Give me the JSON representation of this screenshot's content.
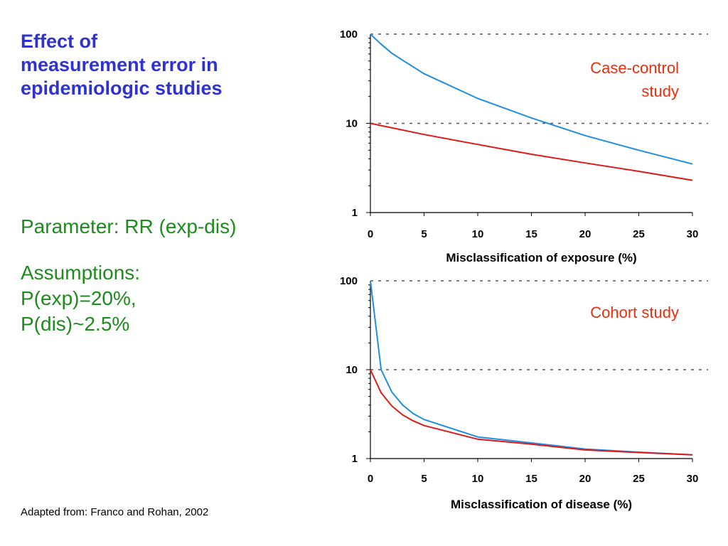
{
  "title_lines": [
    "Effect of",
    "measurement error in",
    "epidemiologic studies"
  ],
  "parameter": "Parameter: RR (exp-dis)",
  "assumptions_lines": [
    "Assumptions:",
    "P(exp)=20%,",
    "P(dis)~2.5%"
  ],
  "source": "Adapted from: Franco and Rohan, 2002",
  "colors": {
    "title": "#2e33cf",
    "text": "#1f8a1f",
    "blue": "#1f8ee0",
    "red": "#e01818",
    "note": "#e8300f"
  },
  "chart_data": [
    {
      "type": "line",
      "xlabel": "Misclassification of exposure (%)",
      "ylabel": "",
      "xlim": [
        0,
        30
      ],
      "ylim": [
        1,
        100
      ],
      "yscale": "log",
      "x_ticks": [
        "0",
        "5",
        "10",
        "15",
        "20",
        "25",
        "30"
      ],
      "y_ticks": [
        "1",
        "10",
        "100"
      ],
      "gridlines_y": [
        10,
        100
      ],
      "annotation_lines": [
        "Case-control",
        "study"
      ],
      "series": [
        {
          "color": "blue",
          "x": [
            0,
            1,
            2,
            3,
            5,
            10,
            15,
            20,
            25,
            30
          ],
          "y": [
            100,
            77,
            61,
            51,
            36,
            19,
            11.5,
            7.3,
            5,
            3.5
          ]
        },
        {
          "color": "red",
          "x": [
            0,
            5,
            10,
            15,
            20,
            25,
            30
          ],
          "y": [
            10,
            7.5,
            5.8,
            4.5,
            3.6,
            2.9,
            2.3
          ]
        }
      ]
    },
    {
      "type": "line",
      "xlabel": "Misclassification of disease (%)",
      "ylabel": "",
      "xlim": [
        0,
        30
      ],
      "ylim": [
        1,
        100
      ],
      "yscale": "log",
      "x_ticks": [
        "0",
        "5",
        "10",
        "15",
        "20",
        "25",
        "30"
      ],
      "y_ticks": [
        "1",
        "10",
        "100"
      ],
      "gridlines_y": [
        10,
        100
      ],
      "annotation_lines": [
        "Cohort study"
      ],
      "series": [
        {
          "color": "blue",
          "x": [
            0,
            1,
            2,
            3,
            4,
            5,
            10,
            15,
            20,
            25,
            30
          ],
          "y": [
            100,
            10,
            5.6,
            4,
            3.2,
            2.75,
            1.75,
            1.5,
            1.28,
            1.18,
            1.1
          ]
        },
        {
          "color": "red",
          "x": [
            0,
            1,
            2,
            3,
            4,
            5,
            10,
            15,
            20,
            25,
            30
          ],
          "y": [
            10,
            5.5,
            3.9,
            3.1,
            2.65,
            2.35,
            1.65,
            1.45,
            1.25,
            1.17,
            1.1
          ]
        }
      ]
    }
  ]
}
